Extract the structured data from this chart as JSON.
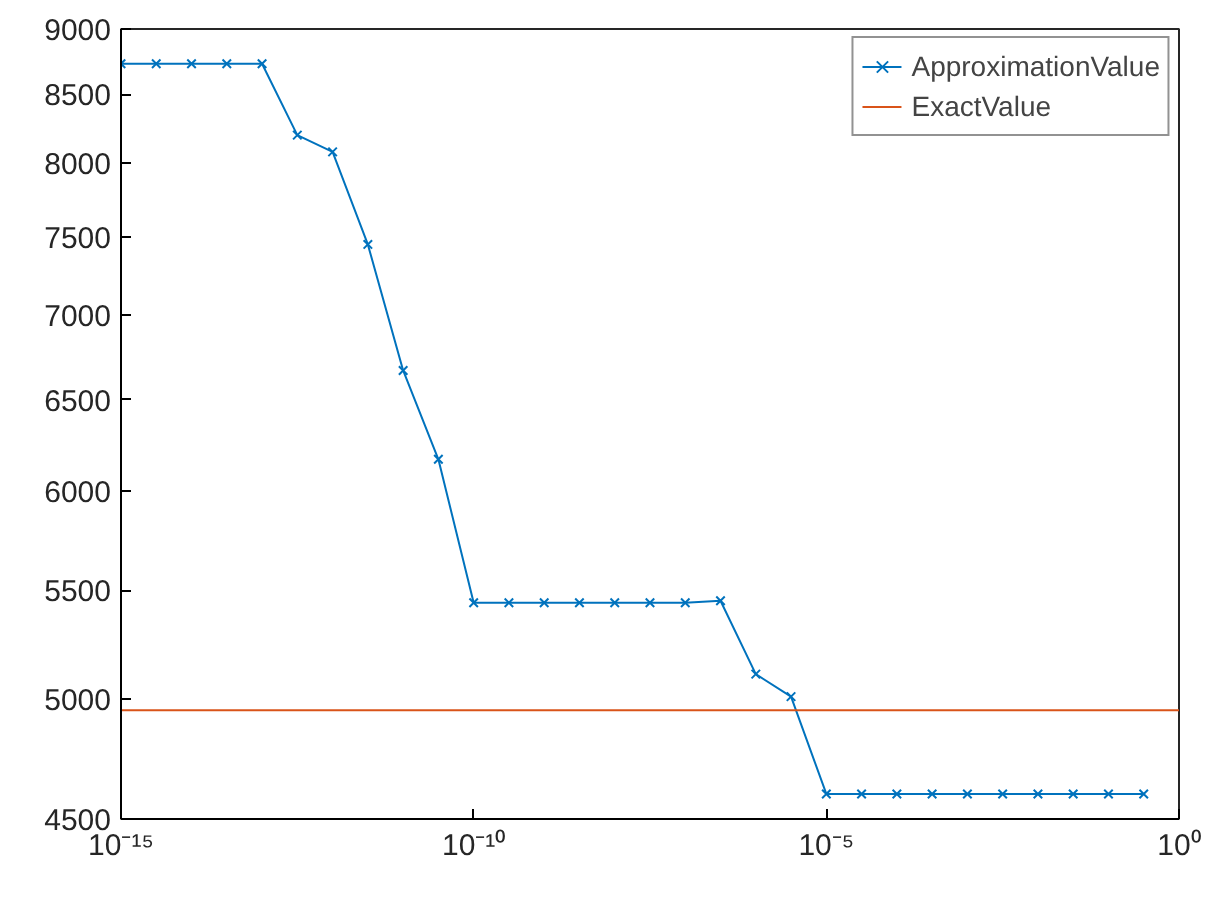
{
  "chart_data": {
    "type": "line",
    "log": "xy",
    "xlim": [
      1e-15,
      1
    ],
    "ylim": [
      4500,
      9000
    ],
    "xticks": [
      {
        "value": 1e-15,
        "label": "10⁻¹⁵"
      },
      {
        "value": 1e-10,
        "label": "10⁻¹⁰"
      },
      {
        "value": 1e-05,
        "label": "10⁻⁵"
      },
      {
        "value": 1,
        "label": "10⁰"
      }
    ],
    "yticks": [
      4500,
      5000,
      5500,
      6000,
      6500,
      7000,
      7500,
      8000,
      8500,
      9000
    ],
    "grid": false,
    "legend": "top right",
    "series": [
      {
        "name": "ApproximationValue",
        "color": "#0072bd",
        "marker": "cross",
        "x": [
          1e-15,
          3.16e-15,
          1e-14,
          3.16e-14,
          1e-13,
          3.16e-13,
          1e-12,
          3.16e-12,
          1e-11,
          3.16e-11,
          1e-10,
          3.16e-10,
          1e-09,
          3.16e-09,
          1e-08,
          3.16e-08,
          1e-07,
          3.16e-07,
          1e-06,
          3.16e-06,
          1e-05,
          3.16e-05,
          0.0001,
          0.000316,
          0.001,
          0.00316,
          0.01,
          0.0316,
          0.1,
          0.316
        ],
        "values": [
          8730,
          8730,
          8730,
          8730,
          8730,
          8200,
          8080,
          7450,
          6670,
          6170,
          5440,
          5440,
          5440,
          5440,
          5440,
          5440,
          5440,
          5450,
          5110,
          5010,
          4600,
          4600,
          4600,
          4600,
          4600,
          4600,
          4600,
          4600,
          4600,
          4600
        ]
      },
      {
        "name": "ExactValue",
        "color": "#d95319",
        "marker": "none",
        "x": [
          1e-15,
          1
        ],
        "values": [
          4950,
          4950
        ]
      }
    ]
  }
}
